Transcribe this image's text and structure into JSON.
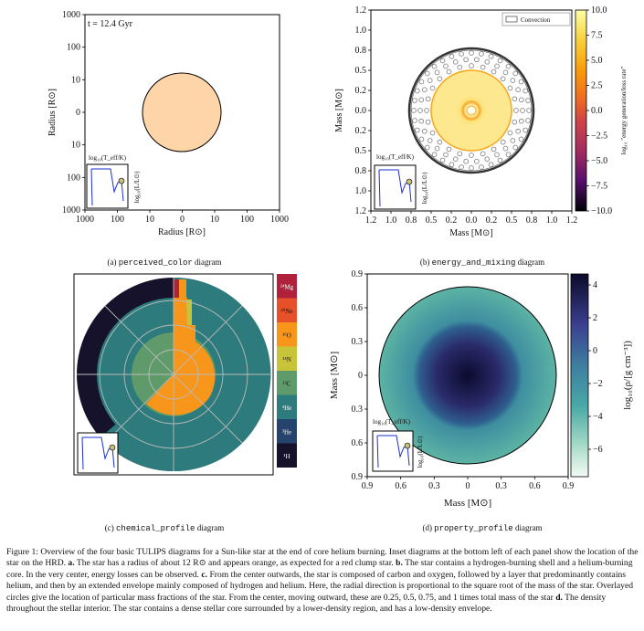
{
  "panel_a": {
    "time_label": "t = 12.4 Gyr",
    "y_label": "Radius [R⊙]",
    "x_label": "Radius [R⊙]",
    "y_ticks": [
      "1000",
      "100",
      "10",
      "0",
      "10",
      "100",
      "1000"
    ],
    "x_ticks": [
      "1000",
      "100",
      "10",
      "0",
      "10",
      "100",
      "1000"
    ],
    "star_color": "#fdd5a8",
    "caption_prefix": "(a)",
    "caption_name": "perceived_color",
    "caption_suffix": "diagram"
  },
  "panel_b": {
    "legend_label": "Convection",
    "y_label": "Mass [M⊙]",
    "x_label": "Mass [M⊙]",
    "y_ticks": [
      "1.2",
      "1.0",
      "0.8",
      "0.5",
      "0.2",
      "0.0",
      "0.2",
      "0.5",
      "0.8",
      "1.0",
      "1.2"
    ],
    "x_ticks": [
      "1.2",
      "1.0",
      "0.8",
      "0.5",
      "0.2",
      "0.0",
      "0.2",
      "0.5",
      "0.8",
      "1.0",
      "1.2"
    ],
    "colorbar_label": "log₁₀ \"energy generation/loss rate\"",
    "colorbar_ticks": [
      "10.0",
      "7.5",
      "5.0",
      "2.5",
      "0.0",
      "−2.5",
      "−5.0",
      "−7.5",
      "−10.0"
    ],
    "caption_prefix": "(b)",
    "caption_name": "energy_and_mixing",
    "caption_suffix": "diagram"
  },
  "panel_c": {
    "legend_items": [
      "²⁴Mg",
      "²⁰Ne",
      "¹⁶O",
      "¹⁴N",
      "¹²C",
      "⁴He",
      "³He",
      "¹H"
    ],
    "legend_colors": [
      "#b0223c",
      "#e8502a",
      "#f7961a",
      "#c7c43a",
      "#5f9a6a",
      "#2d7b7c",
      "#25436c",
      "#16122b"
    ],
    "caption_prefix": "(c)",
    "caption_name": "chemical_profile",
    "caption_suffix": "diagram"
  },
  "panel_d": {
    "y_label": "Mass [M⊙]",
    "x_label": "Mass [M⊙]",
    "y_ticks": [
      "0.9",
      "0.6",
      "0.3",
      "0",
      "0.3",
      "0.6",
      "0.9"
    ],
    "x_ticks": [
      "0.9",
      "0.6",
      "0.3",
      "0",
      "0.3",
      "0.6",
      "0.9"
    ],
    "colorbar_label": "log₁₀(ρ/[g cm⁻³])",
    "colorbar_ticks": [
      "4",
      "2",
      "0",
      "−2",
      "−4",
      "−6"
    ],
    "caption_prefix": "(d)",
    "caption_name": "property_profile",
    "caption_suffix": "diagram"
  },
  "inset": {
    "x_label": "log₁₀(T_eff/K)",
    "y_label": "log₁₀(L/L⊙)"
  },
  "figure_caption": {
    "label": "Figure 1:",
    "text": "Overview of the four basic TULIPS diagrams for a Sun-like star at the end of core helium burning. Inset diagrams at the bottom left of each panel show the location of the star on the HRD.",
    "a_label": "a.",
    "a_text": "The star has a radius of about 12 R⊙ and appears orange, as expected for a red clump star.",
    "b_label": "b.",
    "b_text": "The star contains a hydrogen-burning shell and a helium-burning core. In the very center, energy losses can be observed.",
    "c_label": "c.",
    "c_text": "From the center outwards, the star is composed of carbon and oxygen, followed by a layer that predominantly contains helium, and then by an extended envelope mainly composed of hydrogen and helium. Here, the radial direction is proportional to the square root of the mass of the star. Overlayed circles give the location of particular mass fractions of the star. From the center, moving outward, these are 0.25, 0.5, 0.75, and 1 times total mass of the star",
    "d_label": "d.",
    "d_text": "The density throughout the stellar interior. The star contains a dense stellar core surrounded by a lower-density region, and has a low-density envelope."
  }
}
